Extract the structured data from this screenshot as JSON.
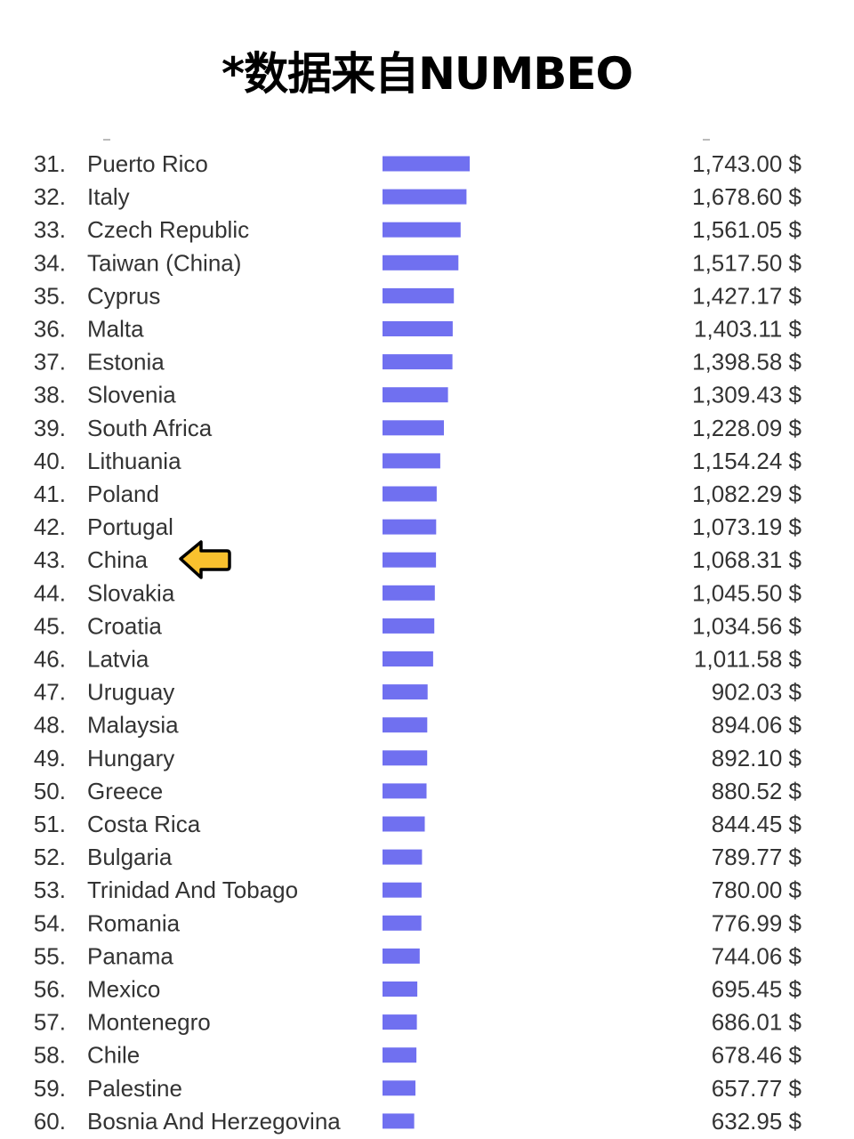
{
  "title": "*数据来自NUMBEO",
  "colors": {
    "bar": "#7070f0",
    "pointer_fill": "#f9c12e",
    "pointer_stroke": "#000000",
    "text": "#333333"
  },
  "icons": {
    "pointer": "left-arrow-icon"
  },
  "highlight_rank": "43.",
  "chart_data": {
    "type": "bar",
    "orientation": "horizontal",
    "unit": "$",
    "grid": false,
    "xlim": [
      0,
      1743
    ],
    "rows": [
      {
        "rank": "31.",
        "country": "Puerto Rico",
        "value": 1743.0,
        "label": "1,743.00 $"
      },
      {
        "rank": "32.",
        "country": "Italy",
        "value": 1678.6,
        "label": "1,678.60 $"
      },
      {
        "rank": "33.",
        "country": "Czech Republic",
        "value": 1561.05,
        "label": "1,561.05 $"
      },
      {
        "rank": "34.",
        "country": "Taiwan (China)",
        "value": 1517.5,
        "label": "1,517.50 $"
      },
      {
        "rank": "35.",
        "country": "Cyprus",
        "value": 1427.17,
        "label": "1,427.17 $"
      },
      {
        "rank": "36.",
        "country": "Malta",
        "value": 1403.11,
        "label": "1,403.11 $"
      },
      {
        "rank": "37.",
        "country": "Estonia",
        "value": 1398.58,
        "label": "1,398.58 $"
      },
      {
        "rank": "38.",
        "country": "Slovenia",
        "value": 1309.43,
        "label": "1,309.43 $"
      },
      {
        "rank": "39.",
        "country": "South Africa",
        "value": 1228.09,
        "label": "1,228.09 $"
      },
      {
        "rank": "40.",
        "country": "Lithuania",
        "value": 1154.24,
        "label": "1,154.24 $"
      },
      {
        "rank": "41.",
        "country": "Poland",
        "value": 1082.29,
        "label": "1,082.29 $"
      },
      {
        "rank": "42.",
        "country": "Portugal",
        "value": 1073.19,
        "label": "1,073.19 $"
      },
      {
        "rank": "43.",
        "country": "China",
        "value": 1068.31,
        "label": "1,068.31 $"
      },
      {
        "rank": "44.",
        "country": "Slovakia",
        "value": 1045.5,
        "label": "1,045.50 $"
      },
      {
        "rank": "45.",
        "country": "Croatia",
        "value": 1034.56,
        "label": "1,034.56 $"
      },
      {
        "rank": "46.",
        "country": "Latvia",
        "value": 1011.58,
        "label": "1,011.58 $"
      },
      {
        "rank": "47.",
        "country": "Uruguay",
        "value": 902.03,
        "label": "902.03 $"
      },
      {
        "rank": "48.",
        "country": "Malaysia",
        "value": 894.06,
        "label": "894.06 $"
      },
      {
        "rank": "49.",
        "country": "Hungary",
        "value": 892.1,
        "label": "892.10 $"
      },
      {
        "rank": "50.",
        "country": "Greece",
        "value": 880.52,
        "label": "880.52 $"
      },
      {
        "rank": "51.",
        "country": "Costa Rica",
        "value": 844.45,
        "label": "844.45 $"
      },
      {
        "rank": "52.",
        "country": "Bulgaria",
        "value": 789.77,
        "label": "789.77 $"
      },
      {
        "rank": "53.",
        "country": "Trinidad And Tobago",
        "value": 780.0,
        "label": "780.00 $"
      },
      {
        "rank": "54.",
        "country": "Romania",
        "value": 776.99,
        "label": "776.99 $"
      },
      {
        "rank": "55.",
        "country": "Panama",
        "value": 744.06,
        "label": "744.06 $"
      },
      {
        "rank": "56.",
        "country": "Mexico",
        "value": 695.45,
        "label": "695.45 $"
      },
      {
        "rank": "57.",
        "country": "Montenegro",
        "value": 686.01,
        "label": "686.01 $"
      },
      {
        "rank": "58.",
        "country": "Chile",
        "value": 678.46,
        "label": "678.46 $"
      },
      {
        "rank": "59.",
        "country": "Palestine",
        "value": 657.77,
        "label": "657.77 $"
      },
      {
        "rank": "60.",
        "country": "Bosnia And Herzegovina",
        "value": 632.95,
        "label": "632.95 $"
      }
    ]
  }
}
